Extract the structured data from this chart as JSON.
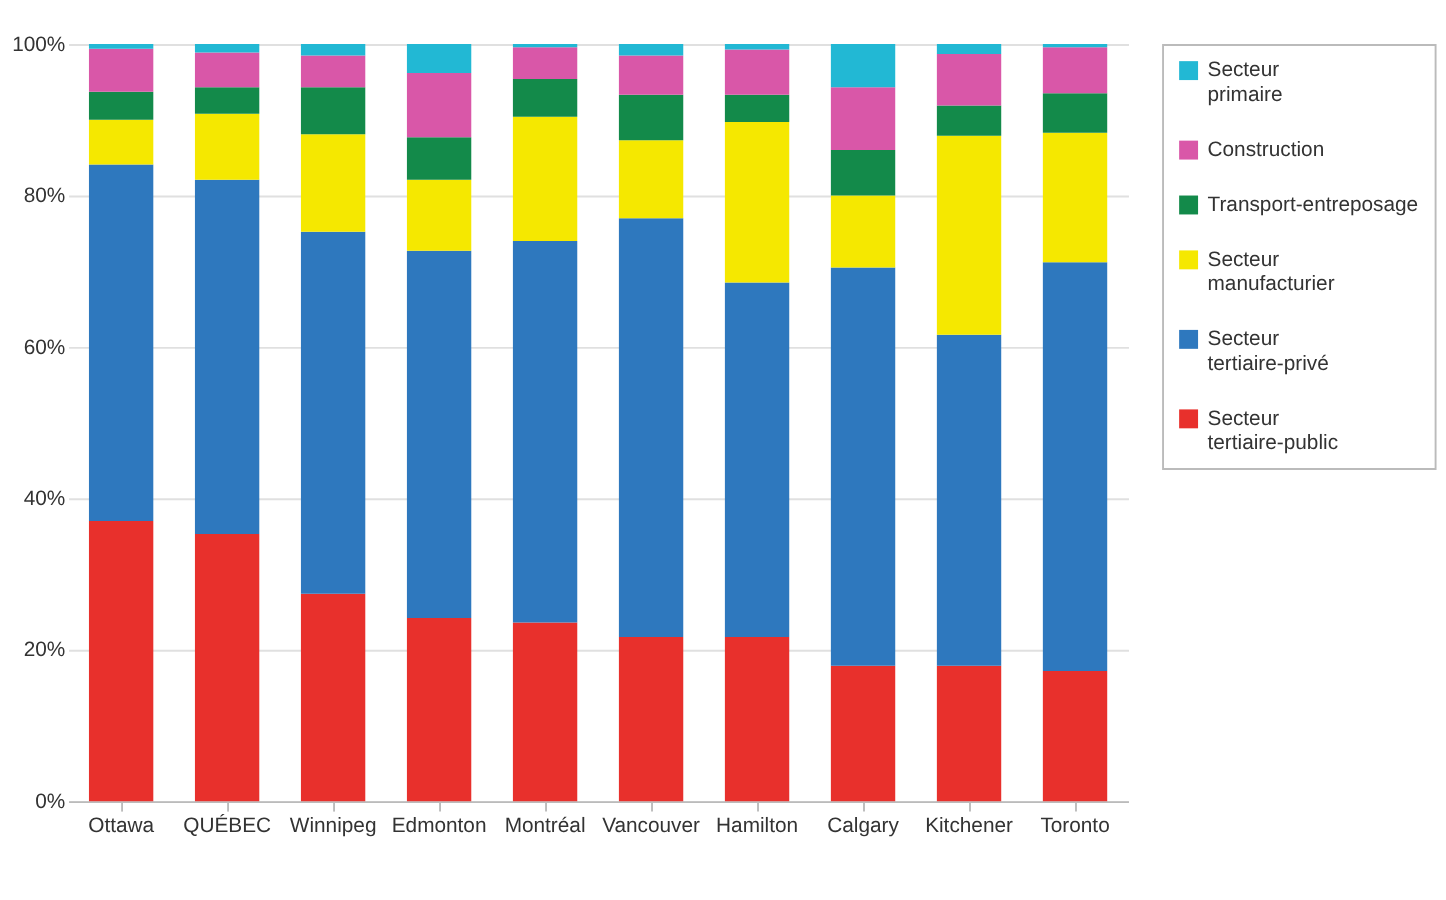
{
  "chart_data": {
    "type": "bar",
    "stacked": true,
    "categories": [
      "Ottawa",
      "QUÉBEC",
      "Winnipeg",
      "Edmonton",
      "Montréal",
      "Vancouver",
      "Hamilton",
      "Calgary",
      "Kitchener",
      "Toronto"
    ],
    "series": [
      {
        "name": "Secteur tertiaire-public",
        "color": "#e8302c",
        "values": [
          37.0,
          35.3,
          27.4,
          24.2,
          23.6,
          21.7,
          21.7,
          17.9,
          17.9,
          17.2
        ]
      },
      {
        "name": "Secteur tertiaire-privé",
        "color": "#2e78be",
        "values": [
          47.1,
          46.8,
          47.8,
          48.5,
          50.4,
          55.3,
          46.8,
          52.6,
          43.7,
          54.0
        ]
      },
      {
        "name": "Secteur manufacturier",
        "color": "#f5e800",
        "values": [
          5.9,
          8.7,
          12.9,
          9.4,
          16.4,
          10.3,
          21.2,
          9.5,
          26.3,
          17.1
        ]
      },
      {
        "name": "Transport-entreposage",
        "color": "#138a4a",
        "values": [
          3.7,
          3.5,
          6.2,
          5.6,
          5.0,
          6.0,
          3.6,
          6.0,
          4.0,
          5.2
        ]
      },
      {
        "name": "Construction",
        "color": "#d957a8",
        "values": [
          5.7,
          4.6,
          4.2,
          8.5,
          4.2,
          5.2,
          6.0,
          8.3,
          6.8,
          6.1
        ]
      },
      {
        "name": "Secteur primaire",
        "color": "#22b8d4",
        "values": [
          0.6,
          1.1,
          1.5,
          3.8,
          0.4,
          1.5,
          0.7,
          5.7,
          1.3,
          0.4
        ]
      }
    ],
    "ylim": [
      0,
      100
    ],
    "yticks": [
      {
        "value": 0,
        "label": "0%"
      },
      {
        "value": 20,
        "label": "20%"
      },
      {
        "value": 40,
        "label": "40%"
      },
      {
        "value": 60,
        "label": "60%"
      },
      {
        "value": 80,
        "label": "80%"
      },
      {
        "value": 100,
        "label": "100%"
      }
    ],
    "grid": "y",
    "legend": "right"
  }
}
